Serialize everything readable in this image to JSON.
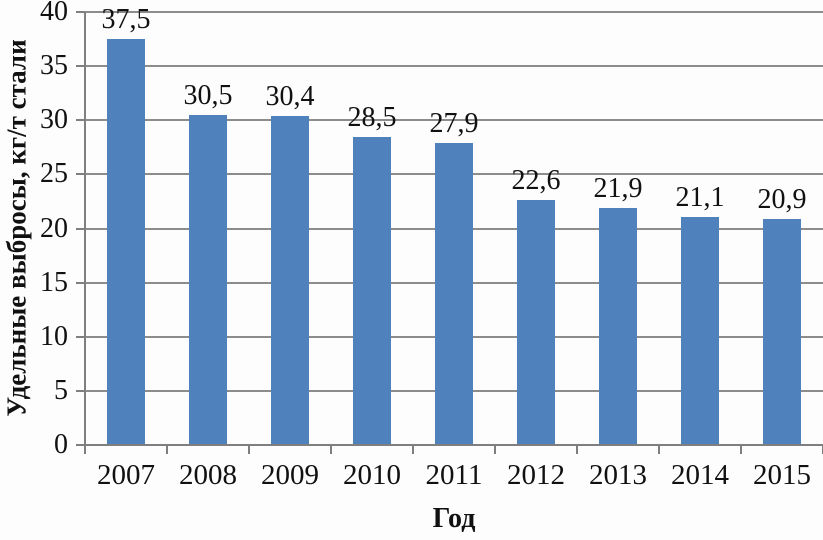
{
  "chart_data": {
    "type": "bar",
    "title": "",
    "categories": [
      "2007",
      "2008",
      "2009",
      "2010",
      "2011",
      "2012",
      "2013",
      "2014",
      "2015"
    ],
    "values": [
      37.5,
      30.5,
      30.4,
      28.5,
      27.9,
      22.6,
      21.9,
      21.1,
      20.9
    ],
    "value_labels": [
      "37,5",
      "30,5",
      "30,4",
      "28,5",
      "27,9",
      "22,6",
      "21,9",
      "21,1",
      "20,9"
    ],
    "xlabel": "Год",
    "ylabel": "Удельные выбросы, кг/т стали",
    "ylim": [
      0,
      40
    ],
    "yticks": [
      0,
      5,
      10,
      15,
      20,
      25,
      30,
      35,
      40
    ],
    "grid": "horizontal",
    "legend": "none",
    "bar_color": "#4f81bd",
    "gridline_color": "#8c8c8c",
    "axis_color": "#7f7f7f",
    "text_color": "#111111"
  }
}
